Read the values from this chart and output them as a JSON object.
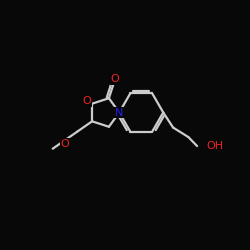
{
  "background_color": "#080808",
  "bond_color": "#cccccc",
  "atom_O_color": "#ee2222",
  "atom_N_color": "#2222ee",
  "figsize": [
    2.5,
    2.5
  ],
  "dpi": 100,
  "xlim": [
    0,
    10
  ],
  "ylim": [
    0,
    10
  ]
}
